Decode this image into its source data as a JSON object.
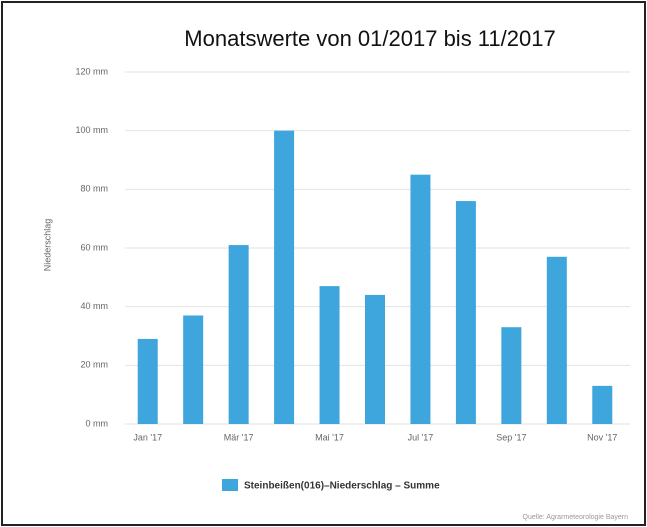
{
  "chart_data": {
    "type": "bar",
    "title": "Monatswerte von 01/2017 bis 11/2017",
    "y_label": "Niederschlag",
    "categories": [
      "Jan '17",
      null,
      "Mär '17",
      null,
      "Mai '17",
      null,
      "Jul '17",
      null,
      "Sep '17",
      null,
      "Nov '17"
    ],
    "series": [
      {
        "name": "Steinbeißen(016)–Niederschlag – Summe",
        "color": "#3ea6dd",
        "values": [
          29,
          37,
          61,
          100,
          47,
          44,
          85,
          76,
          33,
          57,
          13
        ]
      }
    ],
    "ylim": [
      0,
      120
    ],
    "yticks": [
      {
        "value": 0,
        "label": "0 mm"
      },
      {
        "value": 20,
        "label": "20 mm"
      },
      {
        "value": 40,
        "label": "40 mm"
      },
      {
        "value": 60,
        "label": "60 mm"
      },
      {
        "value": 80,
        "label": "80 mm"
      },
      {
        "value": 100,
        "label": "100 mm"
      },
      {
        "value": 120,
        "label": "120 mm"
      }
    ],
    "grid": true,
    "source": "Quelle: Agrarmeteorologie Bayern"
  }
}
